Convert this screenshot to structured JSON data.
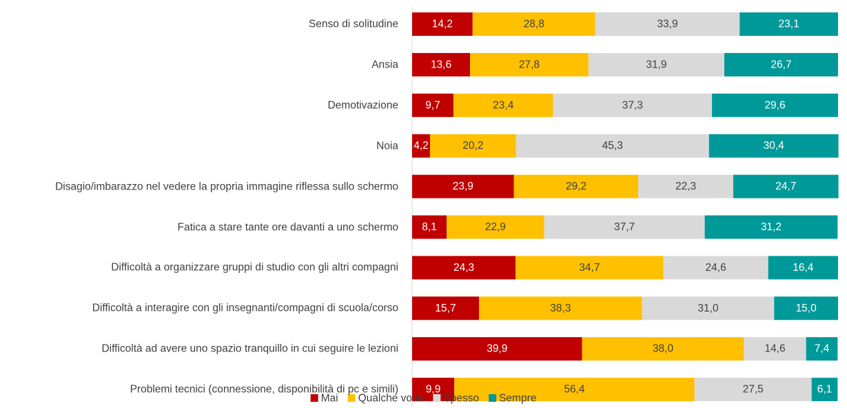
{
  "chart_data": {
    "type": "stacked-bar-horizontal",
    "categories": [
      "Senso di solitudine",
      "Ansia",
      "Demotivazione",
      "Noia",
      "Disagio/imbarazzo nel vedere la propria immagine riflessa sullo schermo",
      "Fatica a stare tante ore davanti a uno schermo",
      "Difficoltà a organizzare gruppi di studio con gli altri compagni",
      "Difficoltà a interagire con gli insegnanti/compagni di scuola/corso",
      "Difficoltà ad avere uno spazio tranquillo in cui seguire le lezioni",
      "Problemi tecnici (connessione, disponibilità di pc e simili)"
    ],
    "series": [
      {
        "name": "Mai",
        "color": "#c00000",
        "values": [
          14.2,
          13.6,
          9.7,
          4.2,
          23.9,
          8.1,
          24.3,
          15.7,
          39.9,
          9.9
        ],
        "value_labels": [
          "14,2",
          "13,6",
          "9,7",
          "4,2",
          "23,9",
          "8,1",
          "24,3",
          "15,7",
          "39,9",
          "9,9"
        ]
      },
      {
        "name": "Qualche volta",
        "color": "#ffc000",
        "values": [
          28.8,
          27.8,
          23.4,
          20.2,
          29.2,
          22.9,
          34.7,
          38.3,
          38.0,
          56.4
        ],
        "value_labels": [
          "28,8",
          "27,8",
          "23,4",
          "20,2",
          "29,2",
          "22,9",
          "34,7",
          "38,3",
          "38,0",
          "56,4"
        ]
      },
      {
        "name": "Spesso",
        "color": "#d9d9d9",
        "values": [
          33.9,
          31.9,
          37.3,
          45.3,
          22.3,
          37.7,
          24.6,
          31.0,
          14.6,
          27.5
        ],
        "value_labels": [
          "33,9",
          "31,9",
          "37,3",
          "45,3",
          "22,3",
          "37,7",
          "24,6",
          "31,0",
          "14,6",
          "27,5"
        ]
      },
      {
        "name": "Sempre",
        "color": "#009999",
        "values": [
          23.1,
          26.7,
          29.6,
          30.4,
          24.7,
          31.2,
          16.4,
          15.0,
          7.4,
          6.1
        ],
        "value_labels": [
          "23,1",
          "26,7",
          "29,6",
          "30,4",
          "24,7",
          "31,2",
          "16,4",
          "15,0",
          "7,4",
          "6,1"
        ]
      }
    ],
    "legend": "bottom"
  }
}
